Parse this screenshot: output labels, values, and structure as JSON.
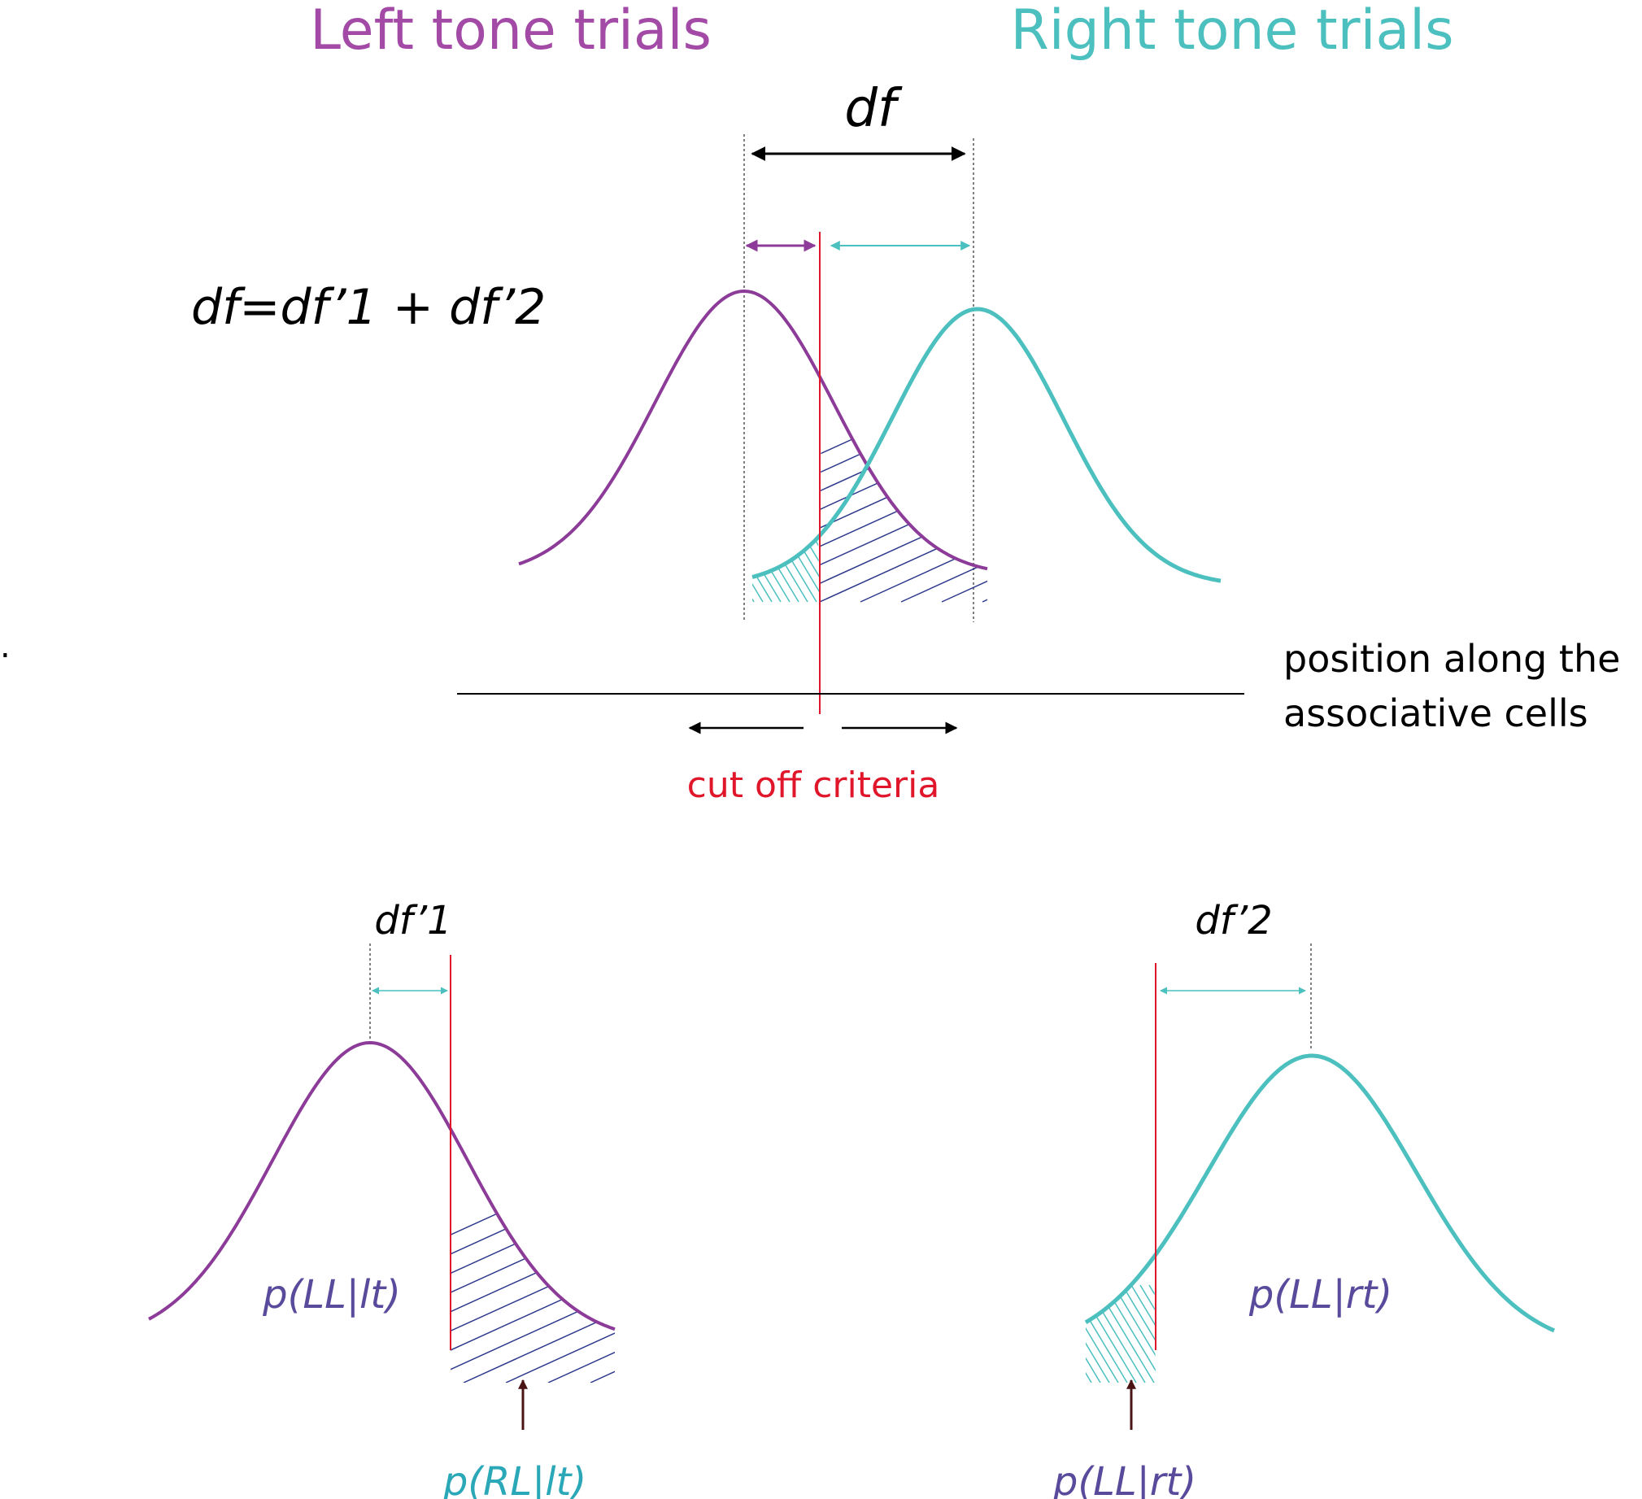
{
  "titles": {
    "left": "Left tone trials",
    "right": "Right tone trials"
  },
  "labels": {
    "df": "df",
    "equation": "df=df’1 + df’2",
    "axis_line1": "position along the",
    "axis_line2": "associative cells",
    "criterion": "cut off criteria",
    "df1": "df’1",
    "df2": "df’2",
    "p_ll_lt": "p(LL|lt)",
    "p_rl_lt": "p(RL|lt)",
    "p_ll_rt_inside": "p(LL|rt)",
    "p_ll_rt_below": "p(LL|rt)",
    "stray_mark": "."
  },
  "colors": {
    "left": "#8c3b98",
    "left_title": "#a24aa5",
    "right": "#4cbfbf",
    "criterion": "#e0162b",
    "hatch": "#2e3a8c",
    "prob_text": "#5a4a9c",
    "arrow_dark": "#4a1414",
    "black": "#000000"
  }
}
